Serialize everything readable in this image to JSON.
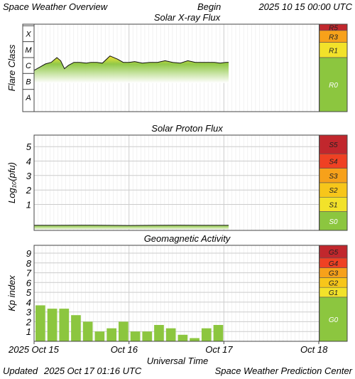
{
  "header": {
    "title": "Space Weather Overview",
    "begin_label": "Begin",
    "begin_value": "2025 10 15 00:00 UTC"
  },
  "footer": {
    "updated_label": "Updated",
    "updated_value": "2025 Oct 17 01:16 UTC",
    "center": "Space Weather Prediction Center"
  },
  "time_axis": {
    "xlabel": "Universal Time",
    "tick_labels": [
      "2025 Oct 15",
      "Oct 16",
      "Oct 17",
      "Oct 18"
    ]
  },
  "colors": {
    "fill_green": "#8cc63f",
    "fill_yellow": "#f2e22a",
    "scale_green": "#8cc63f",
    "scale_yellow": "#f2e22a",
    "scale_orange": "#f7a11a",
    "scale_red_orange": "#ef4123",
    "scale_dark_red": "#c1272d"
  },
  "chart_data": [
    {
      "type": "area",
      "title": "Solar X-ray Flux",
      "ylabel": "Flare Class",
      "y_axis": [
        "A",
        "B",
        "C",
        "M",
        "X"
      ],
      "ylim": [
        -8.4,
        -2.9
      ],
      "xlim_days": [
        0,
        3
      ],
      "scale": [
        {
          "label": "R5",
          "color": "#c1272d"
        },
        {
          "label": "R3",
          "color": "#f7a11a"
        },
        {
          "label": "R1",
          "color": "#f2e22a"
        },
        {
          "label": "R0",
          "color": "#8cc63f"
        }
      ],
      "series": {
        "x_days": [
          0,
          0.06,
          0.12,
          0.18,
          0.24,
          0.28,
          0.32,
          0.36,
          0.42,
          0.48,
          0.55,
          0.6,
          0.66,
          0.72,
          0.8,
          0.88,
          0.94,
          1,
          1.06,
          1.14,
          1.22,
          1.3,
          1.38,
          1.46,
          1.54,
          1.62,
          1.7,
          1.78,
          1.84,
          1.9,
          1.96,
          2.02,
          2.05
        ],
        "log_flux": [
          -5.8,
          -5.6,
          -5.4,
          -5.3,
          -5.0,
          -5.2,
          -5.7,
          -5.5,
          -5.3,
          -5.3,
          -5.35,
          -5.3,
          -5.3,
          -5.35,
          -4.9,
          -5.1,
          -5.3,
          -5.3,
          -5.25,
          -5.35,
          -5.3,
          -5.3,
          -5.2,
          -5.3,
          -5.35,
          -5.2,
          -5.3,
          -5.3,
          -5.3,
          -5.3,
          -5.35,
          -5.3,
          -5.3
        ]
      }
    },
    {
      "type": "area",
      "title": "Solar Proton Flux",
      "ylabel": "Log₁₀(pfu)",
      "y_ticks": [
        "1",
        "2",
        "3",
        "4",
        "5"
      ],
      "ylim": [
        -0.8,
        5.8
      ],
      "xlim_days": [
        0,
        3
      ],
      "scale": [
        {
          "label": "S5",
          "color": "#c1272d"
        },
        {
          "label": "S4",
          "color": "#ef4123"
        },
        {
          "label": "S3",
          "color": "#f7a11a"
        },
        {
          "label": "S2",
          "color": "#f7c61a"
        },
        {
          "label": "S1",
          "color": "#f2e22a"
        },
        {
          "label": "S0",
          "color": "#8cc63f"
        }
      ],
      "series": {
        "x_days": [
          0,
          0.25,
          0.5,
          0.75,
          1,
          1.25,
          1.5,
          1.75,
          2.05
        ],
        "log_pfu": [
          -0.45,
          -0.45,
          -0.44,
          -0.45,
          -0.46,
          -0.45,
          -0.44,
          -0.45,
          -0.45
        ]
      }
    },
    {
      "type": "bar",
      "title": "Geomagnetic Activity",
      "ylabel": "Kp index",
      "y_ticks": [
        "1",
        "2",
        "3",
        "4",
        "5",
        "6",
        "7",
        "8",
        "9"
      ],
      "ylim": [
        0,
        9.8
      ],
      "xlim_days": [
        0,
        3
      ],
      "bar_width_days": 0.125,
      "scale": [
        {
          "label": "G5",
          "color": "#c1272d"
        },
        {
          "label": "G4",
          "color": "#ef4123"
        },
        {
          "label": "G3",
          "color": "#f7a11a"
        },
        {
          "label": "G2",
          "color": "#f7c61a"
        },
        {
          "label": "G1",
          "color": "#f2e22a"
        },
        {
          "label": "G0",
          "color": "#8cc63f"
        }
      ],
      "values": [
        3.67,
        3.33,
        3.33,
        2.67,
        2.0,
        1.0,
        1.33,
        2.0,
        1.0,
        1.0,
        1.67,
        1.33,
        0.67,
        0.33,
        1.33,
        1.67
      ]
    }
  ]
}
